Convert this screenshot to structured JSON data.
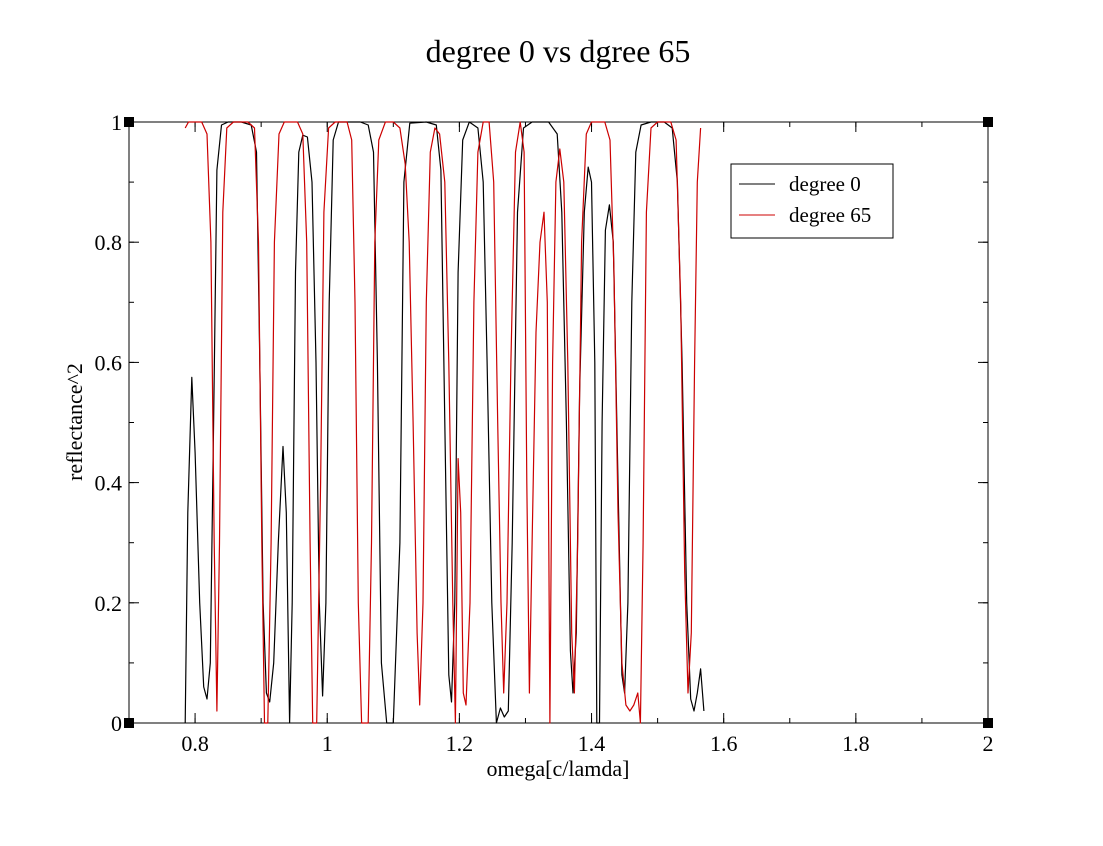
{
  "chart_data": {
    "type": "line",
    "title": "degree 0  vs  dgree 65",
    "xlabel": "omega[c/lamda]",
    "ylabel": "reflectance^2",
    "xlim": [
      0.7,
      2.0
    ],
    "ylim": [
      0,
      1
    ],
    "x_ticks": [
      0.8,
      1,
      1.2,
      1.4,
      1.6,
      1.8,
      2
    ],
    "x_tick_labels": [
      "0.8",
      "1",
      "1.2",
      "1.4",
      "1.6",
      "1.8",
      "2"
    ],
    "y_ticks": [
      0,
      0.2,
      0.4,
      0.6,
      0.8,
      1
    ],
    "y_tick_labels": [
      "0",
      "0.2",
      "0.4",
      "0.6",
      "0.8",
      "1"
    ],
    "grid": false,
    "legend_position": "top-right",
    "series": [
      {
        "name": "degree 0",
        "color": "#000000",
        "points": [
          [
            0.785,
            0.0
          ],
          [
            0.789,
            0.35
          ],
          [
            0.795,
            0.575
          ],
          [
            0.8,
            0.45
          ],
          [
            0.807,
            0.2
          ],
          [
            0.813,
            0.06
          ],
          [
            0.818,
            0.04
          ],
          [
            0.823,
            0.1
          ],
          [
            0.828,
            0.5
          ],
          [
            0.833,
            0.92
          ],
          [
            0.84,
            0.995
          ],
          [
            0.85,
            1.0
          ],
          [
            0.87,
            1.0
          ],
          [
            0.885,
            0.995
          ],
          [
            0.893,
            0.95
          ],
          [
            0.898,
            0.6
          ],
          [
            0.903,
            0.2
          ],
          [
            0.908,
            0.05
          ],
          [
            0.913,
            0.035
          ],
          [
            0.919,
            0.1
          ],
          [
            0.926,
            0.3
          ],
          [
            0.933,
            0.46
          ],
          [
            0.938,
            0.35
          ],
          [
            0.943,
            0.0
          ],
          [
            0.947,
            0.2
          ],
          [
            0.952,
            0.75
          ],
          [
            0.957,
            0.95
          ],
          [
            0.963,
            0.978
          ],
          [
            0.97,
            0.975
          ],
          [
            0.977,
            0.9
          ],
          [
            0.983,
            0.6
          ],
          [
            0.988,
            0.2
          ],
          [
            0.993,
            0.045
          ],
          [
            0.998,
            0.2
          ],
          [
            1.003,
            0.7
          ],
          [
            1.009,
            0.97
          ],
          [
            1.017,
            1.0
          ],
          [
            1.05,
            1.0
          ],
          [
            1.062,
            0.995
          ],
          [
            1.07,
            0.95
          ],
          [
            1.076,
            0.6
          ],
          [
            1.082,
            0.1
          ],
          [
            1.09,
            0.0
          ],
          [
            1.1,
            0.0
          ],
          [
            1.11,
            0.3
          ],
          [
            1.116,
            0.9
          ],
          [
            1.125,
            0.998
          ],
          [
            1.15,
            1.0
          ],
          [
            1.165,
            0.995
          ],
          [
            1.172,
            0.92
          ],
          [
            1.178,
            0.5
          ],
          [
            1.184,
            0.08
          ],
          [
            1.188,
            0.035
          ],
          [
            1.193,
            0.2
          ],
          [
            1.198,
            0.75
          ],
          [
            1.205,
            0.97
          ],
          [
            1.215,
            1.0
          ],
          [
            1.228,
            0.99
          ],
          [
            1.236,
            0.9
          ],
          [
            1.242,
            0.6
          ],
          [
            1.249,
            0.2
          ],
          [
            1.256,
            0.0
          ],
          [
            1.262,
            0.025
          ],
          [
            1.268,
            0.01
          ],
          [
            1.274,
            0.02
          ],
          [
            1.28,
            0.3
          ],
          [
            1.288,
            0.85
          ],
          [
            1.297,
            0.99
          ],
          [
            1.31,
            1.0
          ],
          [
            1.335,
            1.0
          ],
          [
            1.348,
            0.98
          ],
          [
            1.355,
            0.85
          ],
          [
            1.362,
            0.5
          ],
          [
            1.368,
            0.12
          ],
          [
            1.372,
            0.05
          ],
          [
            1.377,
            0.15
          ],
          [
            1.382,
            0.55
          ],
          [
            1.389,
            0.85
          ],
          [
            1.395,
            0.925
          ],
          [
            1.4,
            0.9
          ],
          [
            1.405,
            0.6
          ],
          [
            1.408,
            0.0
          ],
          [
            1.412,
            0.0
          ],
          [
            1.416,
            0.5
          ],
          [
            1.421,
            0.82
          ],
          [
            1.427,
            0.862
          ],
          [
            1.433,
            0.8
          ],
          [
            1.44,
            0.4
          ],
          [
            1.446,
            0.08
          ],
          [
            1.45,
            0.05
          ],
          [
            1.455,
            0.2
          ],
          [
            1.461,
            0.7
          ],
          [
            1.467,
            0.95
          ],
          [
            1.475,
            0.995
          ],
          [
            1.49,
            1.0
          ],
          [
            1.51,
            1.0
          ],
          [
            1.522,
            0.99
          ],
          [
            1.53,
            0.9
          ],
          [
            1.537,
            0.6
          ],
          [
            1.544,
            0.2
          ],
          [
            1.55,
            0.04
          ],
          [
            1.555,
            0.02
          ],
          [
            1.56,
            0.05
          ],
          [
            1.565,
            0.09
          ],
          [
            1.57,
            0.02
          ]
        ]
      },
      {
        "name": "degree 65",
        "color": "#cc0000",
        "points": [
          [
            0.785,
            0.99
          ],
          [
            0.79,
            1.0
          ],
          [
            0.81,
            1.0
          ],
          [
            0.818,
            0.98
          ],
          [
            0.824,
            0.8
          ],
          [
            0.829,
            0.3
          ],
          [
            0.833,
            0.02
          ],
          [
            0.837,
            0.3
          ],
          [
            0.842,
            0.85
          ],
          [
            0.848,
            0.99
          ],
          [
            0.858,
            1.0
          ],
          [
            0.88,
            1.0
          ],
          [
            0.89,
            0.99
          ],
          [
            0.896,
            0.8
          ],
          [
            0.901,
            0.3
          ],
          [
            0.905,
            0.0
          ],
          [
            0.91,
            0.0
          ],
          [
            0.915,
            0.3
          ],
          [
            0.92,
            0.8
          ],
          [
            0.927,
            0.98
          ],
          [
            0.935,
            1.0
          ],
          [
            0.955,
            1.0
          ],
          [
            0.963,
            0.98
          ],
          [
            0.969,
            0.8
          ],
          [
            0.974,
            0.3
          ],
          [
            0.978,
            0.0
          ],
          [
            0.984,
            0.0
          ],
          [
            0.99,
            0.4
          ],
          [
            0.995,
            0.85
          ],
          [
            1.002,
            0.99
          ],
          [
            1.012,
            1.0
          ],
          [
            1.03,
            1.0
          ],
          [
            1.037,
            0.97
          ],
          [
            1.042,
            0.7
          ],
          [
            1.047,
            0.2
          ],
          [
            1.052,
            0.0
          ],
          [
            1.062,
            0.0
          ],
          [
            1.067,
            0.3
          ],
          [
            1.072,
            0.8
          ],
          [
            1.078,
            0.97
          ],
          [
            1.088,
            1.0
          ],
          [
            1.1,
            1.0
          ],
          [
            1.11,
            0.99
          ],
          [
            1.118,
            0.93
          ],
          [
            1.124,
            0.8
          ],
          [
            1.13,
            0.5
          ],
          [
            1.136,
            0.15
          ],
          [
            1.14,
            0.03
          ],
          [
            1.145,
            0.2
          ],
          [
            1.15,
            0.7
          ],
          [
            1.156,
            0.95
          ],
          [
            1.163,
            0.99
          ],
          [
            1.17,
            0.98
          ],
          [
            1.178,
            0.9
          ],
          [
            1.184,
            0.6
          ],
          [
            1.19,
            0.2
          ],
          [
            1.194,
            0.0
          ],
          [
            1.198,
            0.44
          ],
          [
            1.202,
            0.35
          ],
          [
            1.206,
            0.05
          ],
          [
            1.21,
            0.03
          ],
          [
            1.216,
            0.2
          ],
          [
            1.222,
            0.7
          ],
          [
            1.228,
            0.95
          ],
          [
            1.236,
            1.0
          ],
          [
            1.245,
            1.0
          ],
          [
            1.252,
            0.9
          ],
          [
            1.258,
            0.5
          ],
          [
            1.263,
            0.2
          ],
          [
            1.267,
            0.05
          ],
          [
            1.272,
            0.2
          ],
          [
            1.278,
            0.6
          ],
          [
            1.285,
            0.95
          ],
          [
            1.292,
            1.0
          ],
          [
            1.298,
            0.95
          ],
          [
            1.302,
            0.4
          ],
          [
            1.306,
            0.05
          ],
          [
            1.31,
            0.3
          ],
          [
            1.316,
            0.65
          ],
          [
            1.322,
            0.8
          ],
          [
            1.328,
            0.85
          ],
          [
            1.333,
            0.7
          ],
          [
            1.337,
            0.0
          ],
          [
            1.341,
            0.6
          ],
          [
            1.346,
            0.9
          ],
          [
            1.352,
            0.955
          ],
          [
            1.358,
            0.9
          ],
          [
            1.364,
            0.6
          ],
          [
            1.37,
            0.15
          ],
          [
            1.374,
            0.05
          ],
          [
            1.379,
            0.3
          ],
          [
            1.385,
            0.8
          ],
          [
            1.392,
            0.98
          ],
          [
            1.4,
            1.0
          ],
          [
            1.42,
            1.0
          ],
          [
            1.428,
            0.97
          ],
          [
            1.434,
            0.75
          ],
          [
            1.44,
            0.35
          ],
          [
            1.446,
            0.1
          ],
          [
            1.452,
            0.03
          ],
          [
            1.458,
            0.02
          ],
          [
            1.464,
            0.03
          ],
          [
            1.47,
            0.05
          ],
          [
            1.474,
            0.0
          ],
          [
            1.478,
            0.3
          ],
          [
            1.483,
            0.85
          ],
          [
            1.49,
            0.99
          ],
          [
            1.5,
            1.0
          ],
          [
            1.52,
            1.0
          ],
          [
            1.528,
            0.97
          ],
          [
            1.535,
            0.7
          ],
          [
            1.541,
            0.25
          ],
          [
            1.546,
            0.05
          ],
          [
            1.551,
            0.15
          ],
          [
            1.556,
            0.6
          ],
          [
            1.56,
            0.9
          ],
          [
            1.565,
            0.99
          ]
        ]
      }
    ]
  }
}
